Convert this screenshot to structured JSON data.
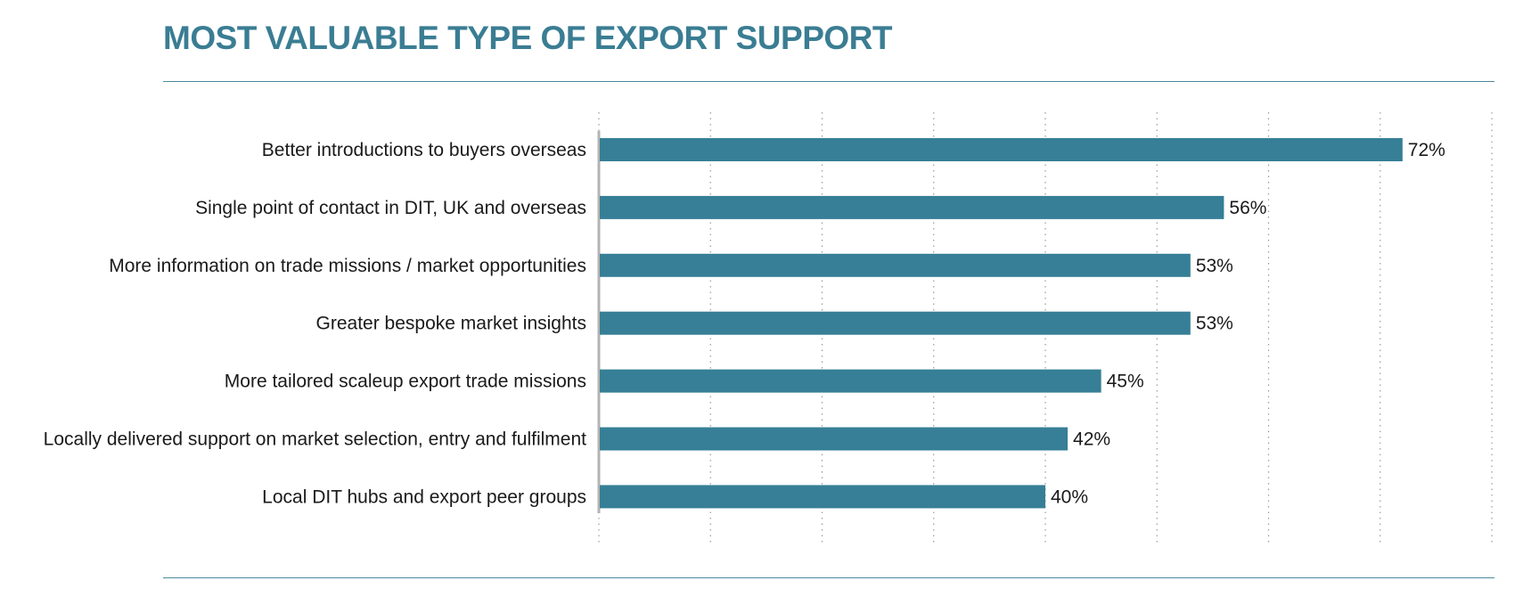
{
  "title": "MOST VALUABLE TYPE OF EXPORT SUPPORT",
  "colors": {
    "title": "#3a7d93",
    "bar": "#367f96",
    "axis": "#b3b3b3",
    "grid": "#9a9a9a",
    "rule": "#4a8a9c"
  },
  "chart_data": {
    "type": "bar",
    "orientation": "horizontal",
    "categories": [
      "Better introductions to buyers overseas",
      "Single point of contact in DIT, UK and overseas",
      "More information on trade missions / market opportunities",
      "Greater bespoke market insights",
      "More tailored scaleup export trade missions",
      "Locally delivered support on market selection, entry and fulfilment",
      "Local DIT hubs and export peer groups"
    ],
    "values": [
      72,
      56,
      53,
      53,
      45,
      42,
      40
    ],
    "value_labels": [
      "72%",
      "56%",
      "53%",
      "53%",
      "45%",
      "42%",
      "40%"
    ],
    "xlim": [
      0,
      80
    ],
    "grid": "vertical dotted every 10",
    "unit": "%"
  }
}
